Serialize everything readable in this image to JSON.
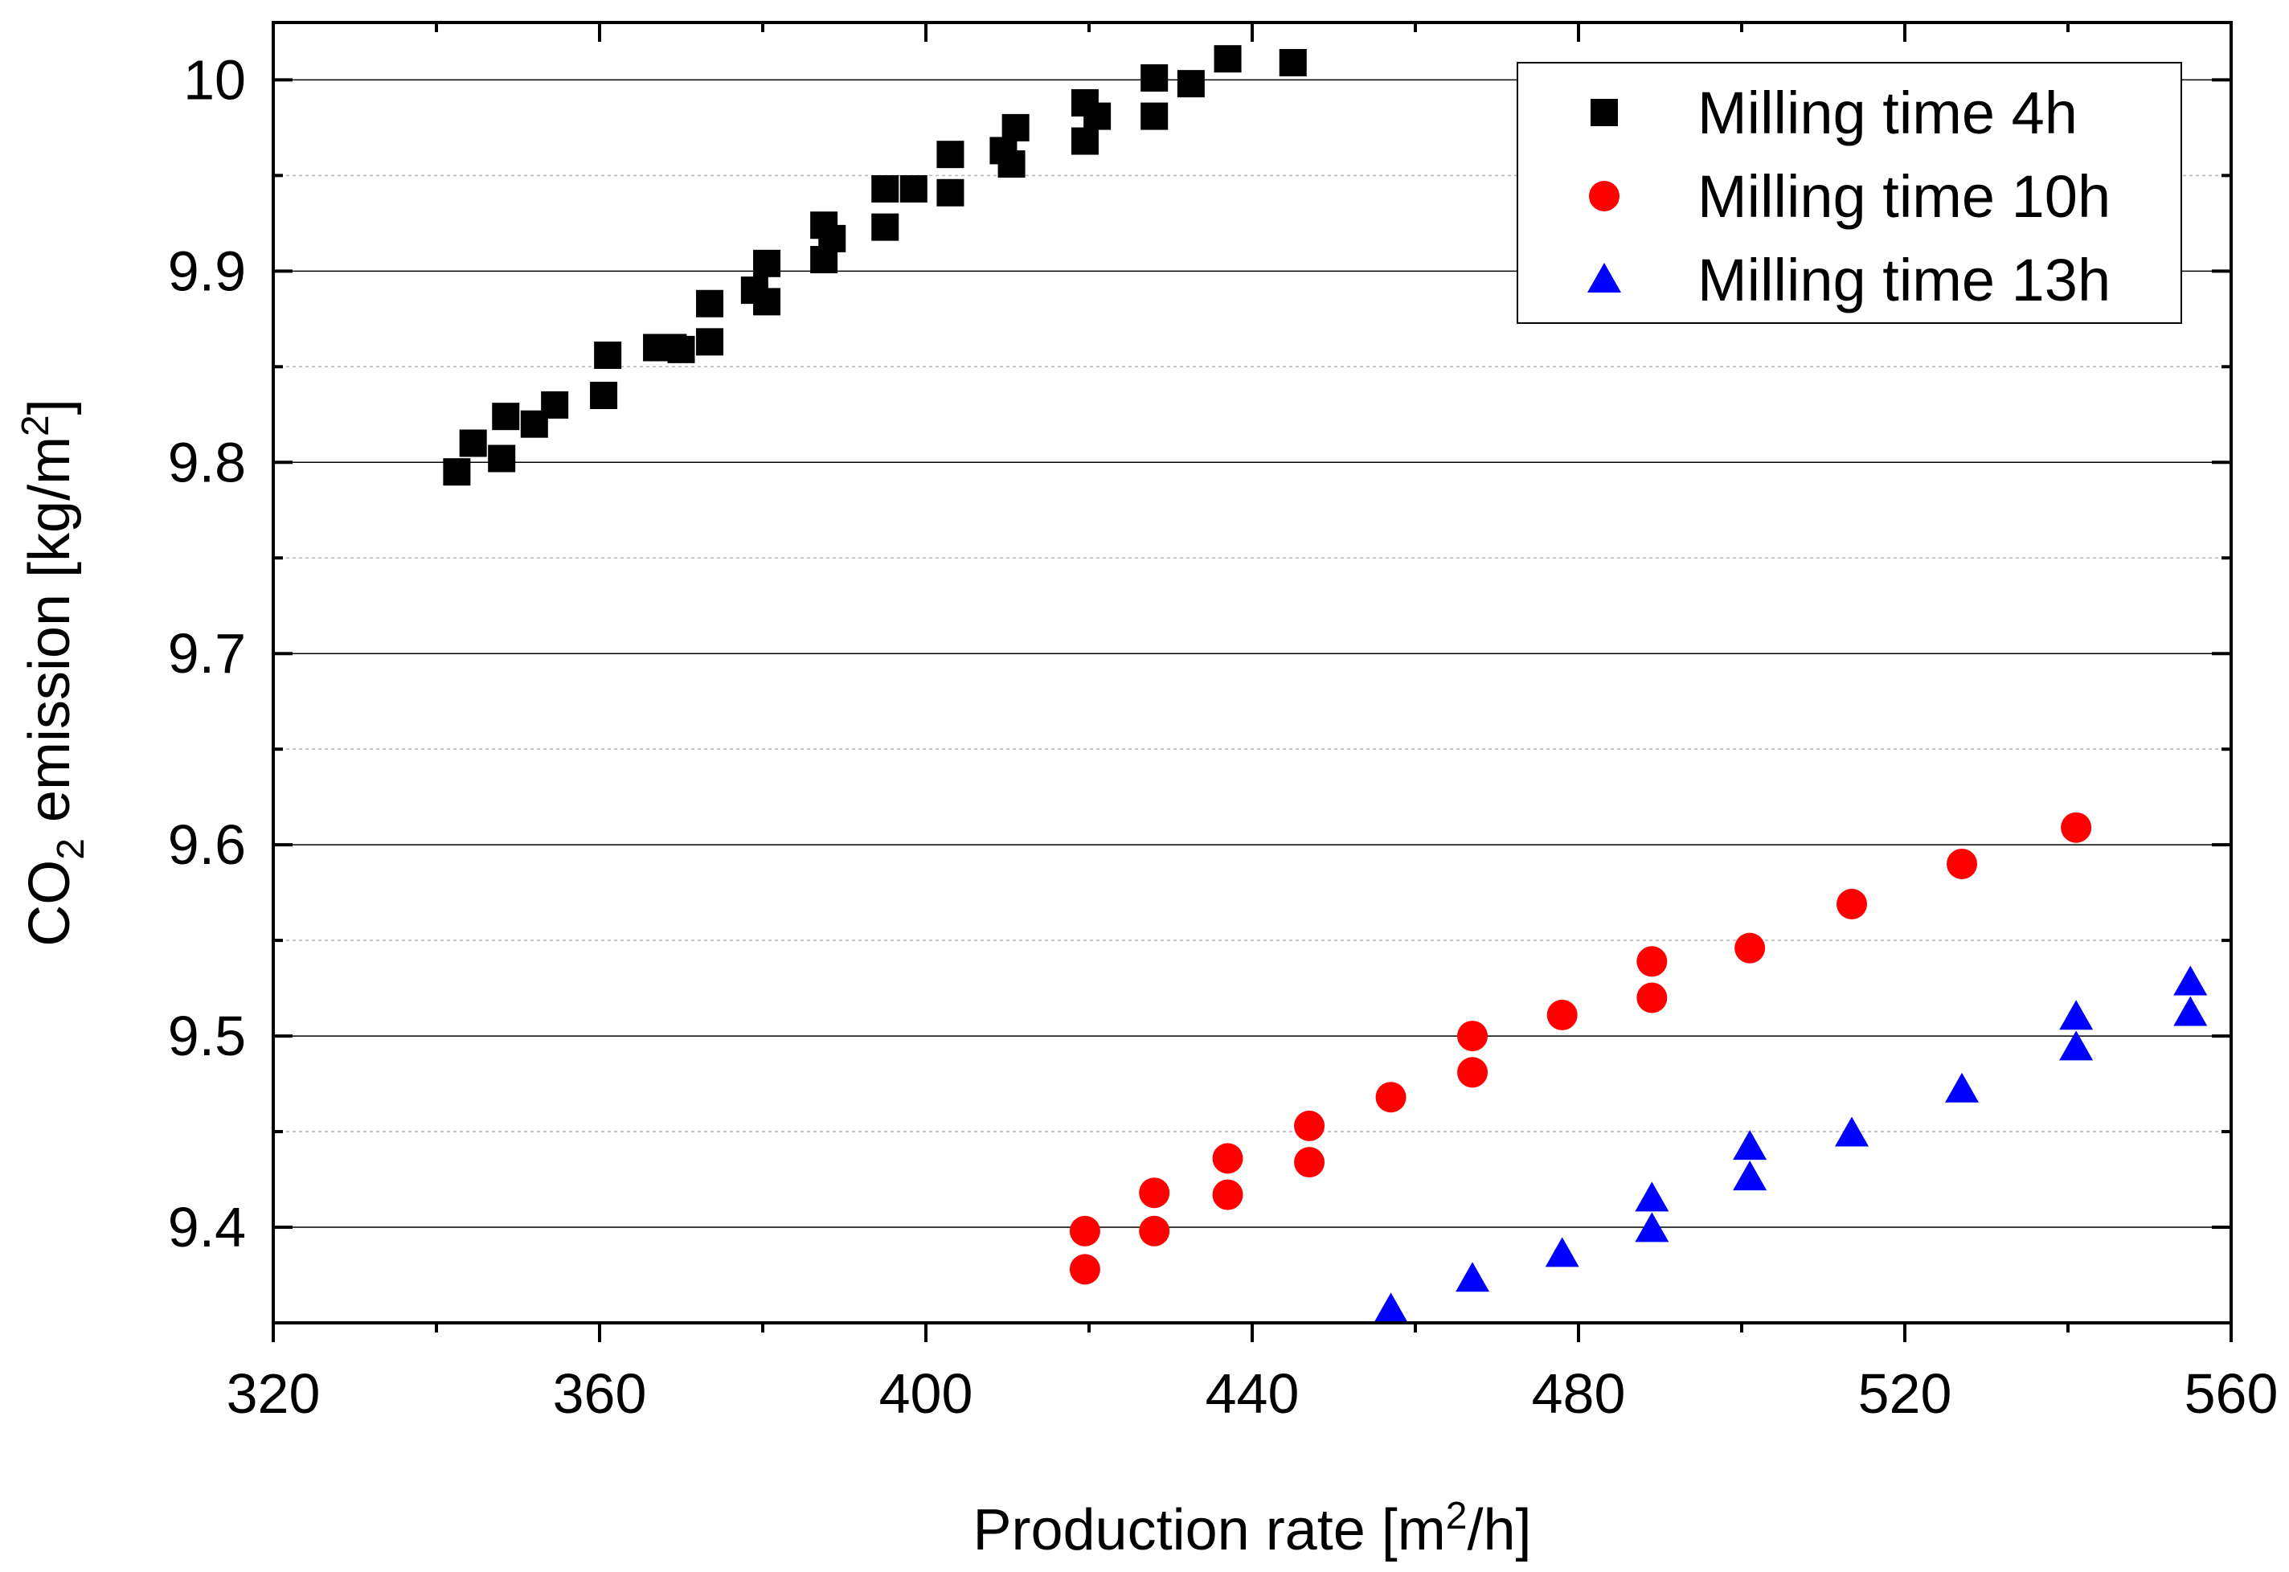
{
  "chart_data": {
    "type": "scatter",
    "title": "",
    "xlabel": "Production rate [m²/h]",
    "ylabel": "CO₂ emission [kg/m²]",
    "xlabel_parts": {
      "pre": "Production rate [m",
      "sup": "2",
      "post": "/h]"
    },
    "ylabel_parts": {
      "pre": "CO",
      "sub": "2",
      "mid": " emission [kg/m",
      "sup": "2",
      "post": "]"
    },
    "xlim": [
      320,
      560
    ],
    "ylim": [
      9.35,
      10.03
    ],
    "xticks": [
      320,
      360,
      400,
      440,
      480,
      520,
      560
    ],
    "xtick_labels": [
      "320",
      "360",
      "400",
      "440",
      "480",
      "520",
      "560"
    ],
    "yticks": [
      9.4,
      9.5,
      9.6,
      9.7,
      9.8,
      9.9,
      10.0
    ],
    "ytick_labels": [
      "9.4",
      "9.5",
      "9.6",
      "9.7",
      "9.8",
      "9.9",
      "10"
    ],
    "grid": true,
    "legend_position": "top-right",
    "series": [
      {
        "name": "Milling time 4h",
        "marker": "square",
        "color": "#000000",
        "points": [
          [
            342.5,
            9.795
          ],
          [
            344.5,
            9.81
          ],
          [
            348.0,
            9.802
          ],
          [
            348.5,
            9.824
          ],
          [
            352.0,
            9.82
          ],
          [
            354.5,
            9.83
          ],
          [
            360.5,
            9.835
          ],
          [
            361.0,
            9.856
          ],
          [
            367.0,
            9.86
          ],
          [
            369.0,
            9.86
          ],
          [
            370.0,
            9.859
          ],
          [
            373.5,
            9.863
          ],
          [
            373.5,
            9.883
          ],
          [
            379.0,
            9.89
          ],
          [
            380.5,
            9.884
          ],
          [
            380.5,
            9.904
          ],
          [
            387.5,
            9.906
          ],
          [
            387.5,
            9.924
          ],
          [
            388.5,
            9.917
          ],
          [
            395.0,
            9.923
          ],
          [
            395.0,
            9.943
          ],
          [
            398.5,
            9.943
          ],
          [
            403.0,
            9.941
          ],
          [
            403.0,
            9.961
          ],
          [
            409.5,
            9.963
          ],
          [
            410.5,
            9.956
          ],
          [
            411.0,
            9.975
          ],
          [
            419.5,
            9.968
          ],
          [
            419.5,
            9.988
          ],
          [
            421.0,
            9.981
          ],
          [
            428.0,
            9.981
          ],
          [
            428.0,
            10.001
          ],
          [
            432.5,
            9.998
          ],
          [
            437.0,
            10.011
          ],
          [
            445.0,
            10.009
          ]
        ]
      },
      {
        "name": "Milling time 10h",
        "marker": "circle",
        "color": "#ff0000",
        "points": [
          [
            419.5,
            9.378
          ],
          [
            419.5,
            9.398
          ],
          [
            428.0,
            9.398
          ],
          [
            428.0,
            9.418
          ],
          [
            437.0,
            9.417
          ],
          [
            437.0,
            9.436
          ],
          [
            447.0,
            9.434
          ],
          [
            447.0,
            9.453
          ],
          [
            457.0,
            9.468
          ],
          [
            467.0,
            9.481
          ],
          [
            467.0,
            9.5
          ],
          [
            478.0,
            9.511
          ],
          [
            489.0,
            9.52
          ],
          [
            489.0,
            9.539
          ],
          [
            501.0,
            9.546
          ],
          [
            513.5,
            9.569
          ],
          [
            527.0,
            9.59
          ],
          [
            541.0,
            9.609
          ]
        ]
      },
      {
        "name": "Milling time 13h",
        "marker": "triangle",
        "color": "#0000ff",
        "points": [
          [
            457.0,
            9.357
          ],
          [
            467.0,
            9.373
          ],
          [
            478.0,
            9.386
          ],
          [
            489.0,
            9.399
          ],
          [
            489.0,
            9.415
          ],
          [
            501.0,
            9.426
          ],
          [
            501.0,
            9.442
          ],
          [
            513.5,
            9.449
          ],
          [
            527.0,
            9.472
          ],
          [
            541.0,
            9.494
          ],
          [
            541.0,
            9.51
          ],
          [
            555.0,
            9.512
          ],
          [
            555.0,
            9.528
          ]
        ]
      }
    ]
  }
}
